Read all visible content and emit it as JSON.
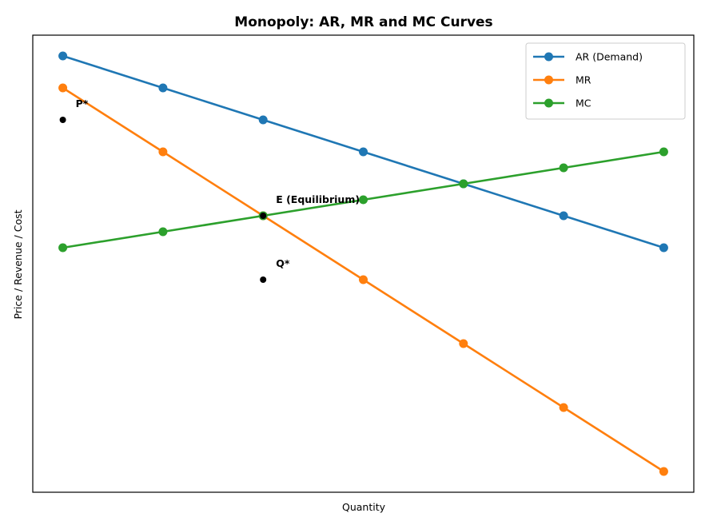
{
  "chart_data": {
    "type": "line",
    "title": "Monopoly: AR, MR and MC Curves",
    "xlabel": "Quantity",
    "ylabel": "Price / Revenue / Cost",
    "x": [
      1,
      2,
      3,
      4,
      5,
      6,
      7
    ],
    "xlim": [
      0.7,
      7.3
    ],
    "ylim": [
      -1.65,
      12.65
    ],
    "grid": false,
    "ticks_visible": false,
    "legend_position": "top-right",
    "series": [
      {
        "name": "AR (Demand)",
        "color": "#1f77b4",
        "values": [
          12,
          11,
          10,
          9,
          8,
          7,
          6
        ]
      },
      {
        "name": "MR",
        "color": "#ff7f0e",
        "values": [
          11,
          9,
          7,
          5,
          3,
          1,
          -1
        ]
      },
      {
        "name": "MC",
        "color": "#2ca02c",
        "values": [
          6,
          6.5,
          7,
          7.5,
          8,
          8.5,
          9
        ]
      }
    ],
    "annotations": [
      {
        "label": "P*",
        "x": 1,
        "y": 10
      },
      {
        "label": "E (Equilibrium)",
        "x": 3,
        "y": 7
      },
      {
        "label": "Q*",
        "x": 3,
        "y": 5
      }
    ]
  }
}
